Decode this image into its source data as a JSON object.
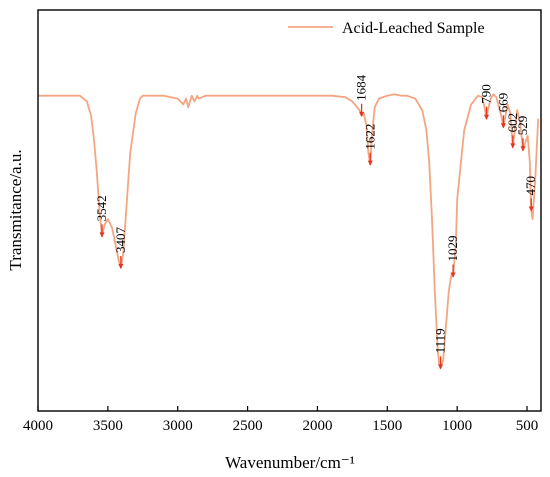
{
  "chart_data": {
    "type": "line",
    "title": "",
    "xlabel": "Wavenumber/cm⁻¹",
    "ylabel": "Transmitance/a.u.",
    "xlim": [
      4000,
      400
    ],
    "ylim": [
      0,
      1
    ],
    "x_ticks": [
      4000,
      3500,
      3000,
      2500,
      2000,
      1500,
      1000,
      500
    ],
    "grid": false,
    "legend": {
      "position": "top-right",
      "entries": [
        "Acid-Leached Sample"
      ]
    },
    "colors": {
      "series": "#f4a582",
      "marker": "#e8331f",
      "axis": "#000000"
    },
    "series": [
      {
        "name": "Acid-Leached Sample",
        "x": [
          4000,
          3750,
          3700,
          3650,
          3620,
          3600,
          3580,
          3560,
          3542,
          3525,
          3500,
          3470,
          3440,
          3420,
          3407,
          3390,
          3370,
          3340,
          3300,
          3270,
          3250,
          3200,
          3100,
          3000,
          2960,
          2940,
          2925,
          2900,
          2880,
          2860,
          2850,
          2800,
          2600,
          2400,
          2200,
          2000,
          1900,
          1800,
          1750,
          1700,
          1684,
          1670,
          1650,
          1635,
          1622,
          1610,
          1590,
          1560,
          1500,
          1450,
          1400,
          1360,
          1300,
          1250,
          1220,
          1200,
          1180,
          1160,
          1140,
          1130,
          1119,
          1100,
          1080,
          1060,
          1040,
          1029,
          1010,
          1000,
          950,
          900,
          850,
          820,
          800,
          790,
          780,
          760,
          740,
          720,
          700,
          680,
          669,
          655,
          640,
          620,
          602,
          590,
          570,
          550,
          529,
          510,
          495,
          480,
          470,
          460,
          440,
          420
        ],
        "y": [
          0.98,
          0.98,
          0.98,
          0.96,
          0.91,
          0.83,
          0.72,
          0.58,
          0.49,
          0.53,
          0.55,
          0.52,
          0.45,
          0.4,
          0.38,
          0.43,
          0.57,
          0.78,
          0.92,
          0.97,
          0.98,
          0.98,
          0.98,
          0.97,
          0.95,
          0.97,
          0.94,
          0.98,
          0.96,
          0.98,
          0.97,
          0.98,
          0.98,
          0.98,
          0.98,
          0.98,
          0.98,
          0.975,
          0.96,
          0.93,
          0.91,
          0.92,
          0.88,
          0.78,
          0.74,
          0.84,
          0.94,
          0.97,
          0.98,
          0.985,
          0.98,
          0.98,
          0.97,
          0.93,
          0.86,
          0.75,
          0.55,
          0.3,
          0.1,
          0.05,
          0.03,
          0.06,
          0.18,
          0.3,
          0.36,
          0.35,
          0.46,
          0.62,
          0.86,
          0.95,
          0.98,
          0.975,
          0.93,
          0.9,
          0.93,
          0.97,
          0.985,
          0.975,
          0.94,
          0.9,
          0.87,
          0.91,
          0.95,
          0.92,
          0.8,
          0.85,
          0.93,
          0.89,
          0.79,
          0.82,
          0.84,
          0.75,
          0.58,
          0.55,
          0.7,
          0.9
        ]
      }
    ],
    "annotations": [
      {
        "label": "3542",
        "x": 3542,
        "y": 0.49
      },
      {
        "label": "3407",
        "x": 3407,
        "y": 0.38
      },
      {
        "label": "1684",
        "x": 1684,
        "y": 0.91
      },
      {
        "label": "1622",
        "x": 1622,
        "y": 0.74
      },
      {
        "label": "1119",
        "x": 1119,
        "y": 0.03
      },
      {
        "label": "1029",
        "x": 1029,
        "y": 0.35
      },
      {
        "label": "790",
        "x": 790,
        "y": 0.9
      },
      {
        "label": "669",
        "x": 669,
        "y": 0.87
      },
      {
        "label": "602",
        "x": 602,
        "y": 0.8
      },
      {
        "label": "529",
        "x": 529,
        "y": 0.79
      },
      {
        "label": "470",
        "x": 470,
        "y": 0.58
      }
    ]
  }
}
